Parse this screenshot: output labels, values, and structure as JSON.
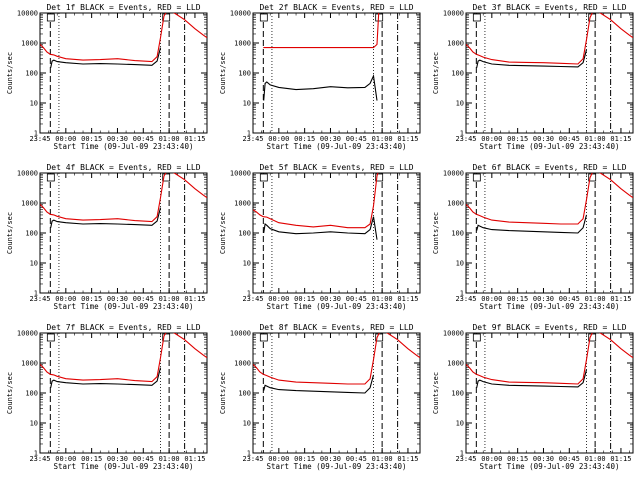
{
  "x_ticks": [
    "23:45",
    "00:00",
    "00:15",
    "00:30",
    "00:45",
    "01:00",
    "01:15"
  ],
  "y_ticks": [
    "10000",
    "1000",
    "100",
    "10",
    "1"
  ],
  "xlabel": "Start Time (09-Jul-09 23:43:40)",
  "ylabel": "Counts/sec",
  "chart_data": [
    {
      "type": "line",
      "title": "Det 1f BLACK = Events, RED = LLD",
      "xlabel": "Start Time (09-Jul-09 23:43:40)",
      "ylabel": "Counts/sec",
      "x_unit": "minutes after 23:45",
      "xlim": [
        0,
        97
      ],
      "ylim": [
        1,
        10000
      ],
      "yscale": "log",
      "markers": {
        "dashed": [
          6,
          75
        ],
        "dotted": [
          11,
          70
        ],
        "dashdot": [
          84
        ]
      },
      "box_marks": [
        [
          6,
          "LS"
        ],
        [
          73,
          "LS"
        ]
      ],
      "series": [
        {
          "name": "BLACK = Events",
          "color": "#000000",
          "x": [
            6.2,
            7,
            8,
            10,
            15,
            25,
            35,
            45,
            55,
            65,
            68,
            70
          ],
          "y": [
            150,
            250,
            270,
            240,
            220,
            200,
            205,
            200,
            190,
            180,
            250,
            700
          ]
        },
        {
          "name": "RED = LLD",
          "color": "#e00000",
          "x": [
            0,
            2,
            4,
            6,
            8,
            10,
            15,
            25,
            35,
            45,
            55,
            65,
            68,
            70,
            72,
            74,
            78,
            84,
            90,
            95,
            97
          ],
          "y": [
            900,
            700,
            500,
            420,
            400,
            360,
            300,
            270,
            280,
            300,
            260,
            240,
            350,
            1500,
            8000,
            12000,
            10000,
            6000,
            3000,
            1800,
            1500
          ]
        }
      ]
    },
    {
      "type": "line",
      "title": "Det 2f BLACK = Events, RED = LLD",
      "xlabel": "Start Time (09-Jul-09 23:43:40)",
      "ylabel": "Counts/sec",
      "x_unit": "minutes after 23:45",
      "xlim": [
        0,
        97
      ],
      "ylim": [
        1,
        10000
      ],
      "yscale": "log",
      "markers": {
        "dashed": [
          6,
          75
        ],
        "dotted": [
          11,
          70
        ],
        "dashdot": [
          84
        ]
      },
      "box_marks": [
        [
          6,
          "LS"
        ],
        [
          73,
          "LS"
        ]
      ],
      "series": [
        {
          "name": "BLACK = Events",
          "color": "#000000",
          "x": [
            6.2,
            7,
            8,
            10,
            15,
            25,
            35,
            45,
            55,
            65,
            68,
            70,
            72
          ],
          "y": [
            12,
            45,
            50,
            40,
            33,
            28,
            30,
            35,
            32,
            33,
            45,
            80,
            12
          ]
        },
        {
          "name": "RED = LLD",
          "color": "#e00000",
          "x": [
            6,
            10,
            20,
            30,
            40,
            50,
            60,
            70,
            72,
            73
          ],
          "y": [
            700,
            700,
            700,
            700,
            700,
            700,
            700,
            700,
            900,
            10000
          ]
        }
      ]
    },
    {
      "type": "line",
      "title": "Det 3f BLACK = Events, RED = LLD",
      "xlabel": "Start Time (09-Jul-09 23:43:40)",
      "ylabel": "Counts/sec",
      "x_unit": "minutes after 23:45",
      "xlim": [
        0,
        97
      ],
      "ylim": [
        1,
        10000
      ],
      "yscale": "log",
      "markers": {
        "dashed": [
          6,
          75
        ],
        "dotted": [
          11,
          70
        ],
        "dashdot": [
          84
        ]
      },
      "box_marks": [
        [
          6,
          "LS"
        ],
        [
          73,
          "LS"
        ]
      ],
      "series": [
        {
          "name": "BLACK = Events",
          "color": "#000000",
          "x": [
            6.2,
            7,
            8,
            10,
            15,
            25,
            35,
            45,
            55,
            65,
            68,
            70
          ],
          "y": [
            150,
            250,
            270,
            240,
            200,
            180,
            175,
            170,
            165,
            160,
            220,
            600
          ]
        },
        {
          "name": "RED = LLD",
          "color": "#e00000",
          "x": [
            0,
            2,
            4,
            6,
            8,
            10,
            15,
            25,
            35,
            45,
            55,
            65,
            68,
            70,
            72,
            74,
            78,
            84,
            90,
            95,
            97
          ],
          "y": [
            900,
            700,
            500,
            420,
            380,
            340,
            280,
            230,
            225,
            220,
            210,
            200,
            300,
            1300,
            7000,
            12000,
            10000,
            6000,
            3000,
            1800,
            1500
          ]
        }
      ]
    },
    {
      "type": "line",
      "title": "Det 4f BLACK = Events, RED = LLD",
      "xlabel": "Start Time (09-Jul-09 23:43:40)",
      "ylabel": "Counts/sec",
      "x_unit": "minutes after 23:45",
      "xlim": [
        0,
        97
      ],
      "ylim": [
        1,
        10000
      ],
      "yscale": "log",
      "markers": {
        "dashed": [
          6,
          75
        ],
        "dotted": [
          11,
          70
        ],
        "dashdot": [
          84
        ]
      },
      "box_marks": [
        [
          6,
          "LS"
        ],
        [
          73,
          "LS"
        ]
      ],
      "series": [
        {
          "name": "BLACK = Events",
          "color": "#000000",
          "x": [
            6.2,
            7,
            8,
            10,
            15,
            25,
            35,
            45,
            55,
            65,
            68,
            70
          ],
          "y": [
            150,
            250,
            270,
            240,
            220,
            200,
            205,
            200,
            190,
            180,
            250,
            700
          ]
        },
        {
          "name": "RED = LLD",
          "color": "#e00000",
          "x": [
            0,
            2,
            4,
            6,
            8,
            10,
            15,
            25,
            35,
            45,
            55,
            65,
            68,
            70,
            72,
            74,
            78,
            84,
            90,
            95,
            97
          ],
          "y": [
            900,
            700,
            500,
            420,
            400,
            360,
            300,
            270,
            280,
            300,
            260,
            240,
            350,
            1500,
            8000,
            12000,
            10000,
            6000,
            3000,
            1800,
            1500
          ]
        }
      ]
    },
    {
      "type": "line",
      "title": "Det 5f BLACK = Events, RED = LLD",
      "xlabel": "Start Time (09-Jul-09 23:43:40)",
      "ylabel": "Counts/sec",
      "x_unit": "minutes after 23:45",
      "xlim": [
        0,
        97
      ],
      "ylim": [
        1,
        10000
      ],
      "yscale": "log",
      "markers": {
        "dashed": [
          6,
          75
        ],
        "dotted": [
          11,
          70
        ],
        "dashdot": [
          84
        ]
      },
      "box_marks": [
        [
          6,
          "LS"
        ],
        [
          73,
          "LS"
        ]
      ],
      "series": [
        {
          "name": "BLACK = Events",
          "color": "#000000",
          "x": [
            6.2,
            7,
            8,
            10,
            15,
            25,
            35,
            45,
            55,
            65,
            68,
            70,
            72
          ],
          "y": [
            100,
            200,
            180,
            140,
            110,
            95,
            100,
            110,
            100,
            95,
            130,
            350,
            60
          ]
        },
        {
          "name": "RED = LLD",
          "color": "#e00000",
          "x": [
            0,
            2,
            4,
            6,
            8,
            10,
            15,
            25,
            35,
            45,
            55,
            65,
            68,
            70,
            72,
            73
          ],
          "y": [
            600,
            500,
            400,
            350,
            340,
            300,
            220,
            180,
            160,
            180,
            150,
            150,
            200,
            800,
            8000,
            12000
          ]
        }
      ]
    },
    {
      "type": "line",
      "title": "Det 6f BLACK = Events, RED = LLD",
      "xlabel": "Start Time (09-Jul-09 23:43:40)",
      "ylabel": "Counts/sec",
      "x_unit": "minutes after 23:45",
      "xlim": [
        0,
        97
      ],
      "ylim": [
        1,
        10000
      ],
      "yscale": "log",
      "markers": {
        "dashed": [
          6,
          75
        ],
        "dotted": [
          11,
          70
        ],
        "dashdot": [
          84
        ]
      },
      "box_marks": [
        [
          6,
          "LS"
        ],
        [
          73,
          "LS"
        ]
      ],
      "series": [
        {
          "name": "BLACK = Events",
          "color": "#000000",
          "x": [
            6.2,
            7,
            8,
            10,
            15,
            25,
            35,
            45,
            55,
            65,
            68,
            70
          ],
          "y": [
            120,
            180,
            170,
            150,
            130,
            120,
            115,
            110,
            105,
            100,
            150,
            400
          ]
        },
        {
          "name": "RED = LLD",
          "color": "#e00000",
          "x": [
            0,
            2,
            4,
            6,
            8,
            10,
            15,
            25,
            35,
            45,
            55,
            65,
            68,
            70,
            72,
            74,
            78,
            84,
            90,
            95,
            97
          ],
          "y": [
            900,
            700,
            500,
            420,
            380,
            340,
            270,
            230,
            220,
            210,
            200,
            200,
            300,
            1300,
            7000,
            12000,
            10000,
            6000,
            3000,
            1800,
            1500
          ]
        }
      ]
    },
    {
      "type": "line",
      "title": "Det 7f BLACK = Events, RED = LLD",
      "xlabel": "Start Time (09-Jul-09 23:43:40)",
      "ylabel": "Counts/sec",
      "x_unit": "minutes after 23:45",
      "xlim": [
        0,
        97
      ],
      "ylim": [
        1,
        10000
      ],
      "yscale": "log",
      "markers": {
        "dashed": [
          6,
          75
        ],
        "dotted": [
          11,
          70
        ],
        "dashdot": [
          84
        ]
      },
      "box_marks": [
        [
          6,
          "LS"
        ],
        [
          73,
          "LS"
        ]
      ],
      "series": [
        {
          "name": "BLACK = Events",
          "color": "#000000",
          "x": [
            6.2,
            7,
            8,
            10,
            15,
            25,
            35,
            45,
            55,
            65,
            68,
            70
          ],
          "y": [
            150,
            250,
            270,
            240,
            220,
            200,
            205,
            200,
            190,
            180,
            250,
            700
          ]
        },
        {
          "name": "RED = LLD",
          "color": "#e00000",
          "x": [
            0,
            2,
            4,
            6,
            8,
            10,
            15,
            25,
            35,
            45,
            55,
            65,
            68,
            70,
            72,
            74,
            78,
            84,
            90,
            95,
            97
          ],
          "y": [
            900,
            700,
            500,
            420,
            400,
            360,
            300,
            270,
            280,
            300,
            260,
            240,
            350,
            1500,
            8000,
            12000,
            10000,
            6000,
            3000,
            1800,
            1500
          ]
        }
      ]
    },
    {
      "type": "line",
      "title": "Det 8f BLACK = Events, RED = LLD",
      "xlabel": "Start Time (09-Jul-09 23:43:40)",
      "ylabel": "Counts/sec",
      "x_unit": "minutes after 23:45",
      "xlim": [
        0,
        97
      ],
      "ylim": [
        1,
        10000
      ],
      "yscale": "log",
      "markers": {
        "dashed": [
          6,
          75
        ],
        "dotted": [
          11,
          70
        ],
        "dashdot": [
          84
        ]
      },
      "box_marks": [
        [
          6,
          "LS"
        ],
        [
          73,
          "LS"
        ]
      ],
      "series": [
        {
          "name": "BLACK = Events",
          "color": "#000000",
          "x": [
            6.2,
            7,
            8,
            10,
            15,
            25,
            35,
            45,
            55,
            65,
            68,
            70
          ],
          "y": [
            120,
            180,
            170,
            150,
            130,
            120,
            115,
            110,
            105,
            100,
            150,
            400
          ]
        },
        {
          "name": "RED = LLD",
          "color": "#e00000",
          "x": [
            0,
            2,
            4,
            6,
            8,
            10,
            15,
            25,
            35,
            45,
            55,
            65,
            68,
            70,
            72,
            74,
            78,
            84,
            90,
            95,
            97
          ],
          "y": [
            900,
            700,
            500,
            420,
            380,
            340,
            270,
            230,
            220,
            210,
            200,
            200,
            300,
            1300,
            7000,
            12000,
            10000,
            6000,
            3000,
            1800,
            1500
          ]
        }
      ]
    },
    {
      "type": "line",
      "title": "Det 9f BLACK = Events, RED = LLD",
      "xlabel": "Start Time (09-Jul-09 23:43:40)",
      "ylabel": "Counts/sec",
      "x_unit": "minutes after 23:45",
      "xlim": [
        0,
        97
      ],
      "ylim": [
        1,
        10000
      ],
      "yscale": "log",
      "markers": {
        "dashed": [
          6,
          75
        ],
        "dotted": [
          11,
          70
        ],
        "dashdot": [
          84
        ]
      },
      "box_marks": [
        [
          6,
          "LS"
        ],
        [
          73,
          "LS"
        ]
      ],
      "series": [
        {
          "name": "BLACK = Events",
          "color": "#000000",
          "x": [
            6.2,
            7,
            8,
            10,
            15,
            25,
            35,
            45,
            55,
            65,
            68,
            70
          ],
          "y": [
            150,
            250,
            270,
            240,
            200,
            180,
            175,
            170,
            165,
            160,
            220,
            600
          ]
        },
        {
          "name": "RED = LLD",
          "color": "#e00000",
          "x": [
            0,
            2,
            4,
            6,
            8,
            10,
            15,
            25,
            35,
            45,
            55,
            65,
            68,
            70,
            72,
            74,
            78,
            84,
            90,
            95,
            97
          ],
          "y": [
            900,
            700,
            500,
            420,
            380,
            340,
            280,
            230,
            225,
            220,
            210,
            200,
            300,
            1300,
            7000,
            12000,
            10000,
            6000,
            3000,
            1800,
            1500
          ]
        }
      ]
    }
  ]
}
